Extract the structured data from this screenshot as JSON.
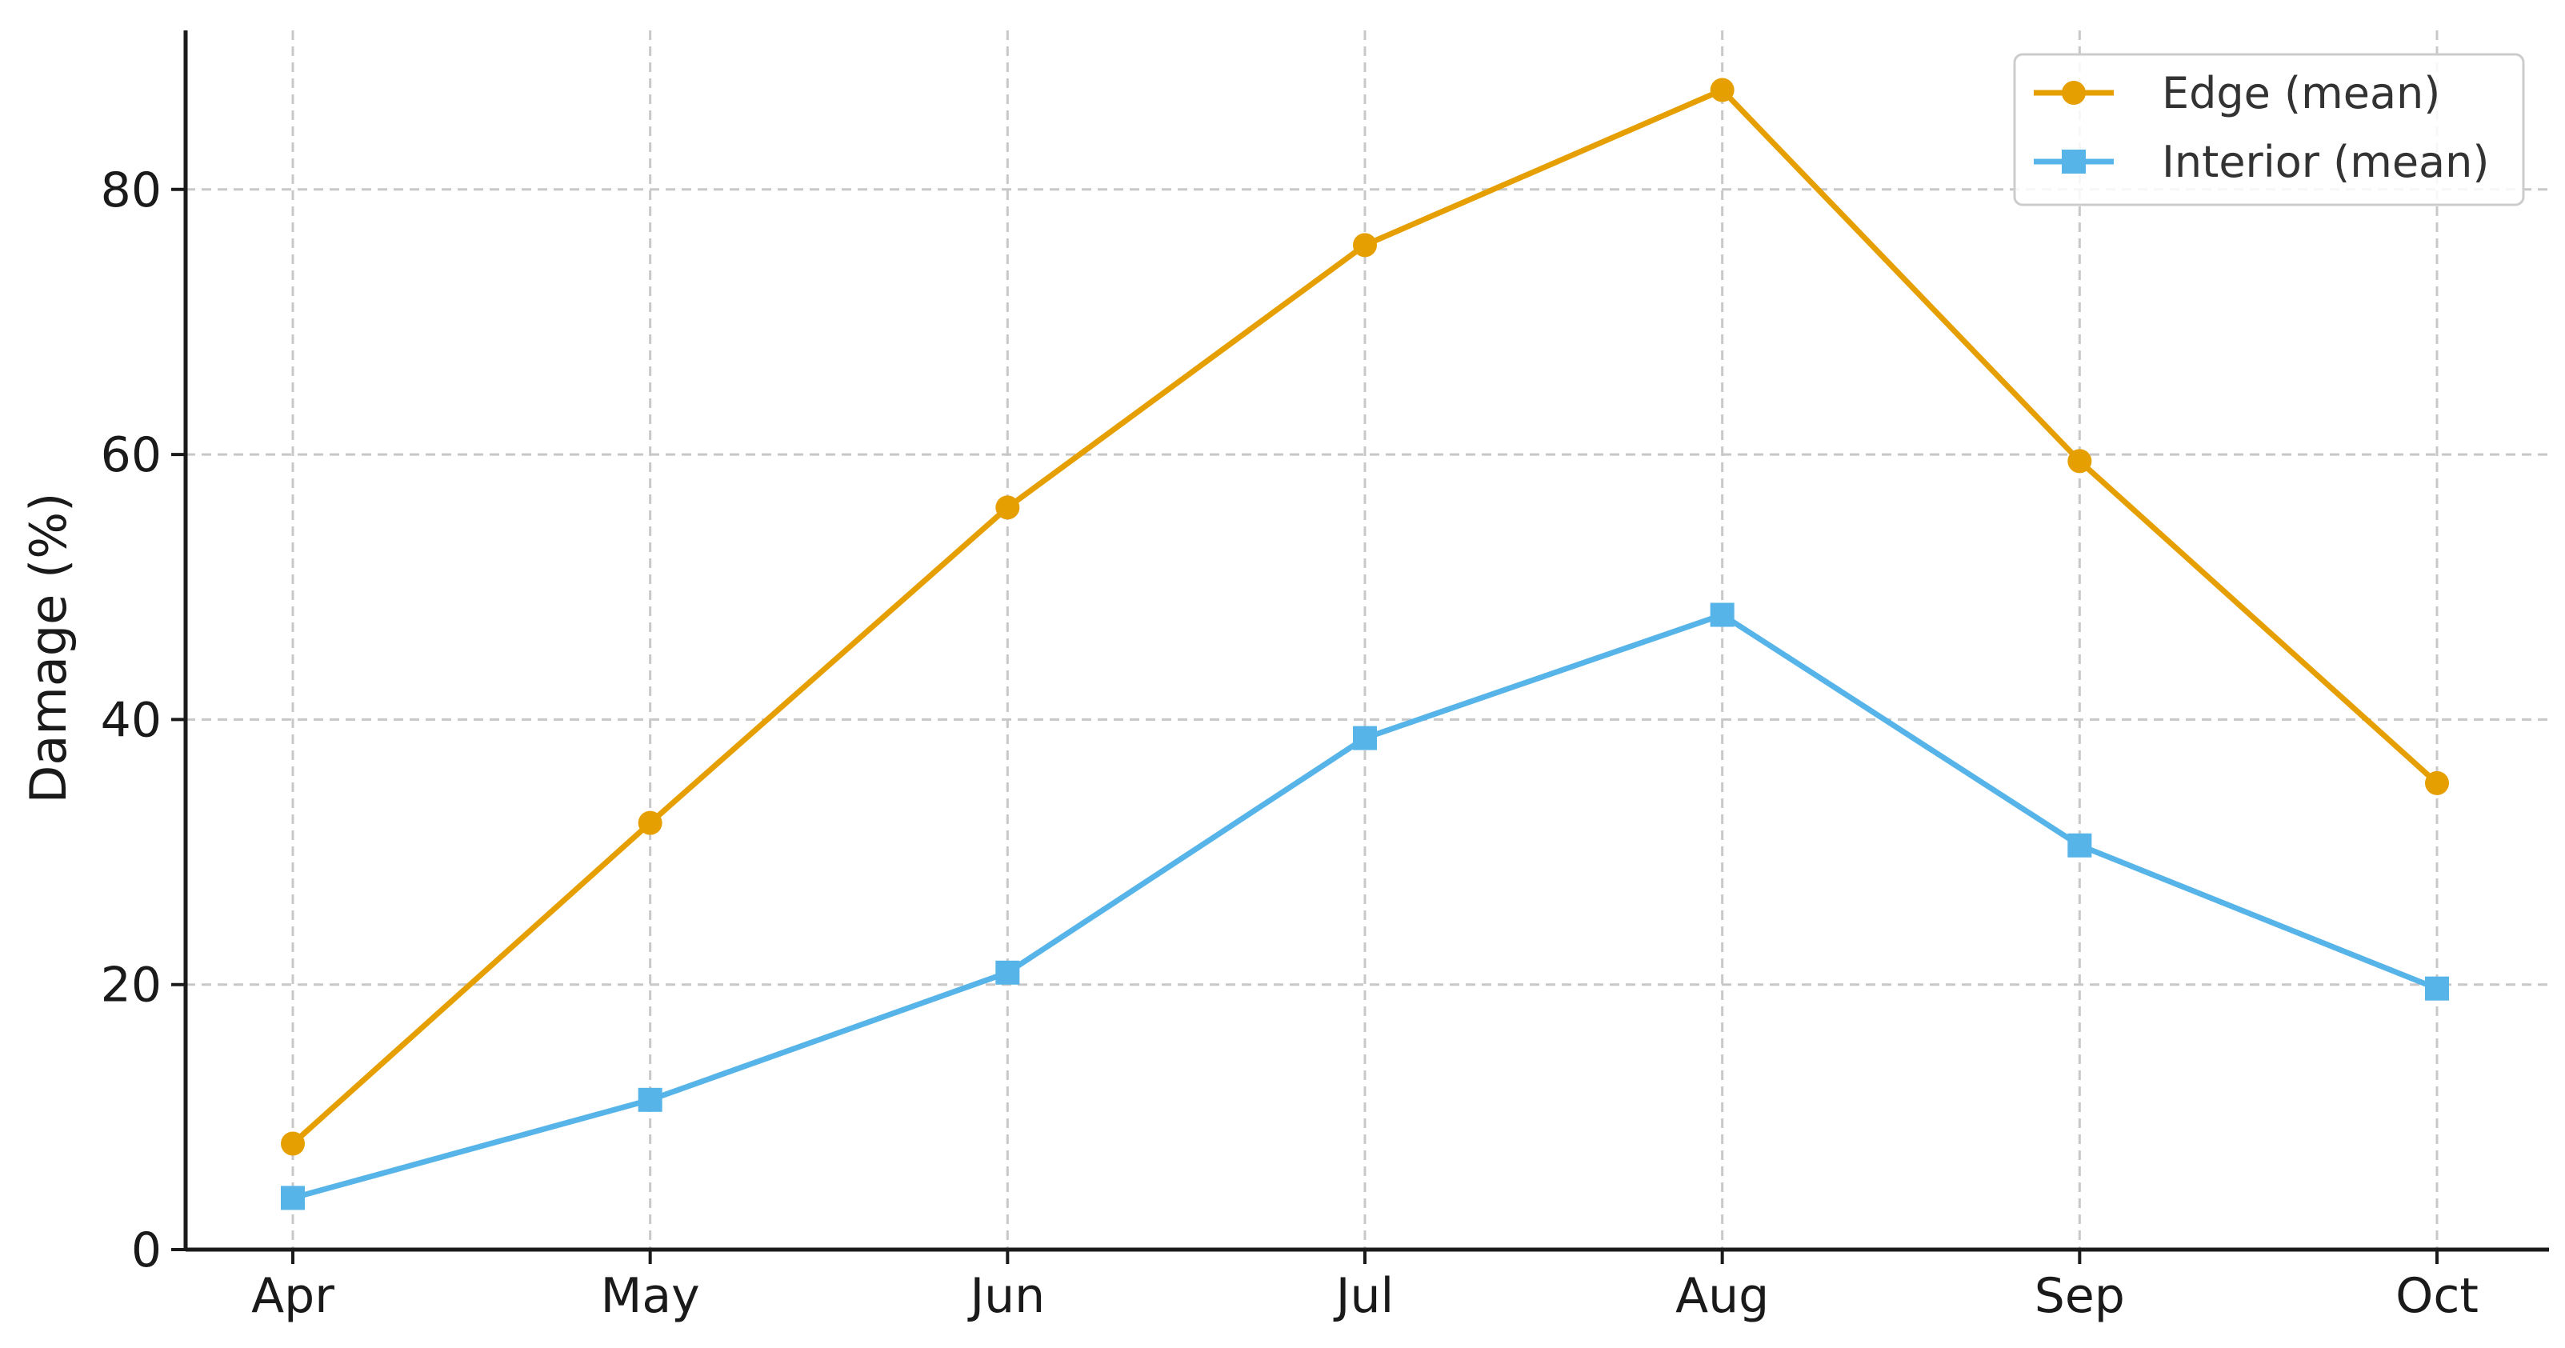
{
  "chart_data": {
    "type": "line",
    "title": "",
    "xlabel": "",
    "ylabel": "Damage (%)",
    "categories": [
      "Apr",
      "May",
      "Jun",
      "Jul",
      "Aug",
      "Sep",
      "Oct"
    ],
    "ylim": [
      0,
      92
    ],
    "yticks": [
      0,
      20,
      40,
      60,
      80
    ],
    "grid": true,
    "legend_position": "top-right",
    "series": [
      {
        "name": "Edge (mean)",
        "color": "#E69F00",
        "marker": "circle",
        "values": [
          8,
          32.2,
          56,
          75.8,
          87.5,
          59.5,
          35.2
        ]
      },
      {
        "name": "Interior (mean)",
        "color": "#56B4E9",
        "marker": "square",
        "values": [
          3.9,
          11.3,
          20.9,
          38.6,
          47.9,
          30.5,
          19.7
        ]
      }
    ]
  }
}
